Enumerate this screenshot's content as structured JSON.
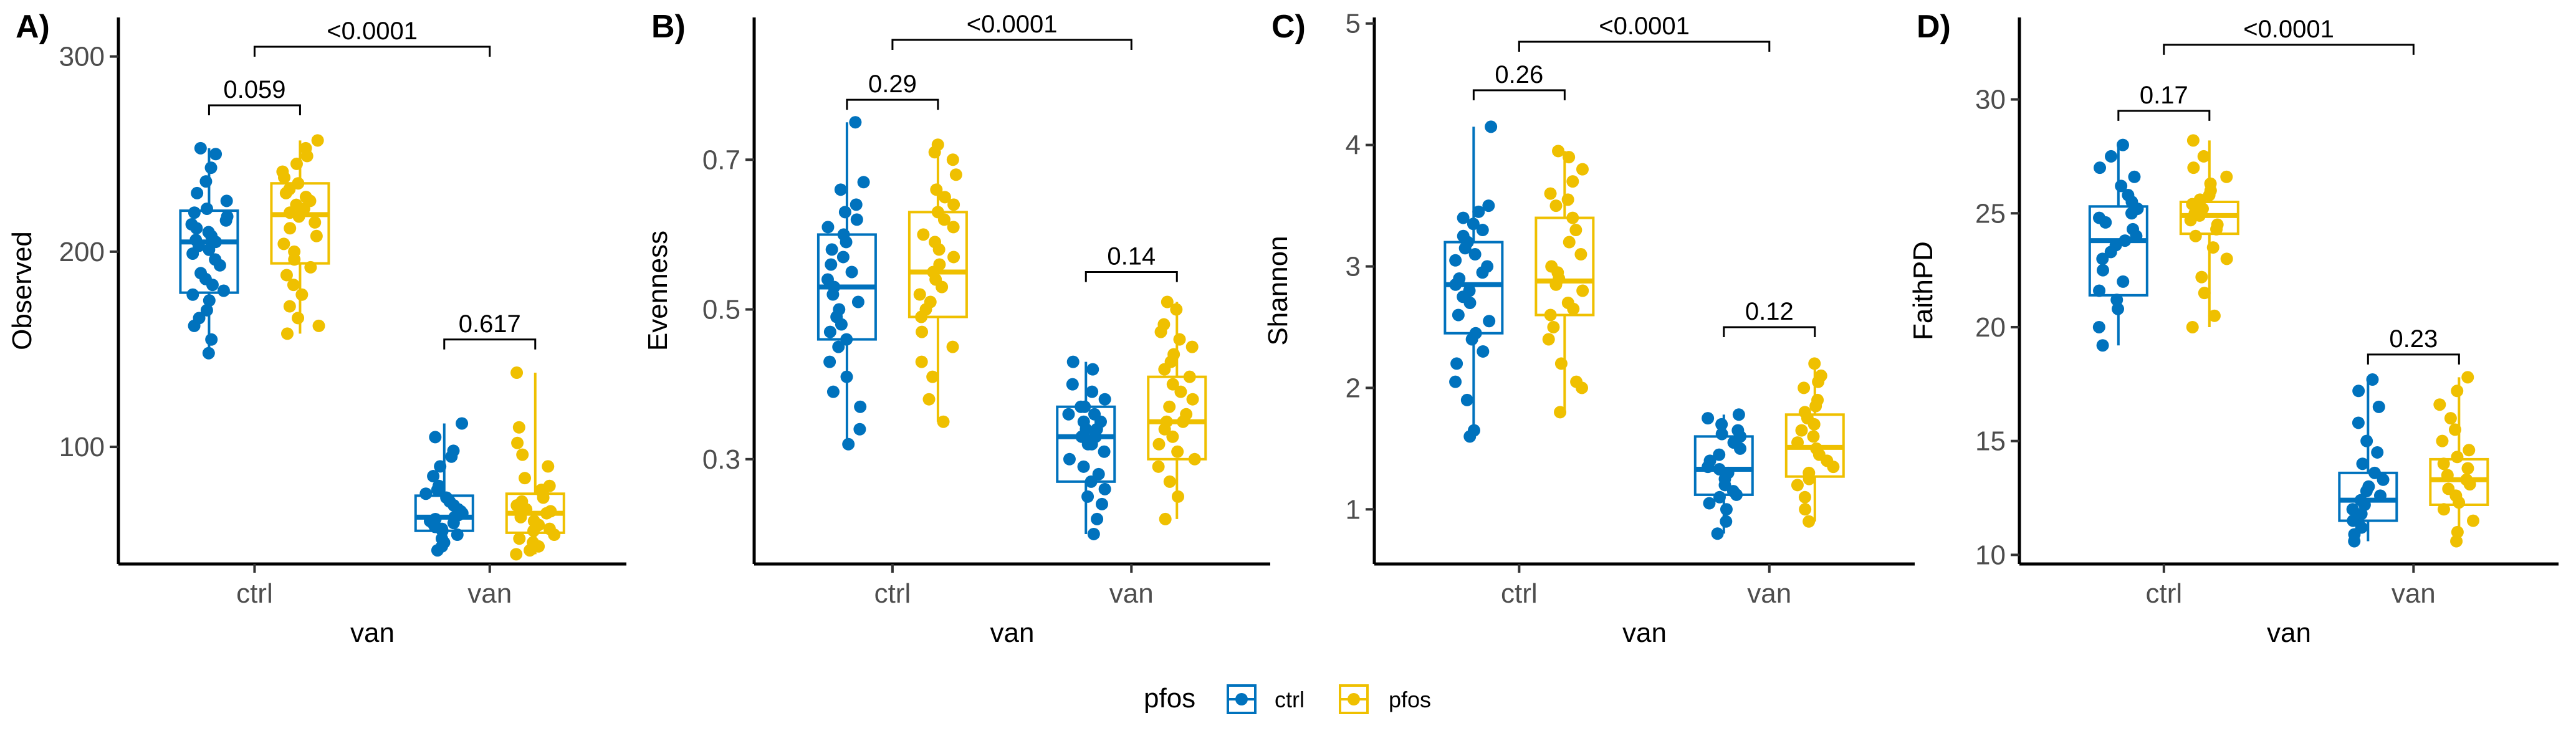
{
  "colors": {
    "ctrl": "#0072BD",
    "pfos": "#EFC000"
  },
  "legend": {
    "title": "pfos",
    "items": [
      {
        "key": "ctrl",
        "label": "ctrl"
      },
      {
        "key": "pfos",
        "label": "pfos"
      }
    ]
  },
  "chart_data": [
    {
      "type": "boxplot",
      "panel_label": "A)",
      "ylabel": "Observed",
      "xlabel": "van",
      "categories": [
        "ctrl",
        "van"
      ],
      "ylim": [
        40,
        320
      ],
      "yticks": [
        100,
        200,
        300
      ],
      "groups": {
        "ctrl": {
          "ctrl": {
            "min": 148,
            "q1": 179,
            "median": 205,
            "q3": 221,
            "max": 253,
            "points": [
              148,
              155,
              162,
              166,
              170,
              175,
              178,
              180,
              183,
              186,
              189,
              193,
              196,
              199,
              201,
              203,
              205,
              206,
              208,
              210,
              212,
              214,
              216,
              218,
              220,
              222,
              226,
              230,
              236,
              243,
              250,
              253
            ]
          },
          "pfos": {
            "min": 158,
            "q1": 194,
            "median": 219,
            "q3": 235,
            "max": 257,
            "points": [
              158,
              162,
              166,
              172,
              178,
              183,
              188,
              192,
              196,
              200,
              204,
              208,
              212,
              215,
              218,
              220,
              222,
              224,
              226,
              228,
              230,
              232,
              235,
              238,
              241,
              245,
              249,
              253,
              257
            ]
          }
        },
        "van": {
          "ctrl": {
            "min": 47,
            "q1": 57,
            "median": 64,
            "q3": 75,
            "max": 112,
            "points": [
              47,
              49,
              51,
              53,
              55,
              57,
              58,
              59,
              60,
              61,
              62,
              63,
              64,
              65,
              66,
              67,
              68,
              70,
              72,
              74,
              76,
              78,
              80,
              85,
              90,
              95,
              98,
              105,
              112
            ]
          },
          "pfos": {
            "min": 45,
            "q1": 56,
            "median": 66,
            "q3": 76,
            "max": 138,
            "points": [
              45,
              47,
              49,
              51,
              53,
              55,
              57,
              58,
              60,
              62,
              64,
              66,
              67,
              68,
              70,
              72,
              74,
              76,
              78,
              80,
              84,
              90,
              96,
              102,
              110,
              138
            ]
          }
        }
      },
      "comparisons": [
        {
          "label": "0.059",
          "from": "ctrl:ctrl",
          "to": "ctrl:pfos",
          "y": 275
        },
        {
          "label": "0.617",
          "from": "van:ctrl",
          "to": "van:pfos",
          "y": 155
        },
        {
          "label": "<0.0001",
          "from": "ctrl",
          "to": "van",
          "y": 305
        }
      ]
    },
    {
      "type": "boxplot",
      "panel_label": "B)",
      "ylabel": "Evenness",
      "xlabel": "van",
      "categories": [
        "ctrl",
        "van"
      ],
      "ylim": [
        0.16,
        0.89
      ],
      "yticks": [
        0.3,
        0.5,
        0.7
      ],
      "groups": {
        "ctrl": {
          "ctrl": {
            "min": 0.32,
            "q1": 0.46,
            "median": 0.53,
            "q3": 0.6,
            "max": 0.75,
            "points": [
              0.32,
              0.34,
              0.37,
              0.39,
              0.41,
              0.43,
              0.45,
              0.46,
              0.47,
              0.48,
              0.49,
              0.5,
              0.51,
              0.52,
              0.53,
              0.54,
              0.55,
              0.56,
              0.57,
              0.58,
              0.59,
              0.6,
              0.61,
              0.62,
              0.63,
              0.64,
              0.66,
              0.67,
              0.75
            ]
          },
          "pfos": {
            "min": 0.35,
            "q1": 0.49,
            "median": 0.55,
            "q3": 0.63,
            "max": 0.72,
            "points": [
              0.35,
              0.38,
              0.41,
              0.43,
              0.45,
              0.47,
              0.49,
              0.5,
              0.51,
              0.52,
              0.53,
              0.54,
              0.55,
              0.56,
              0.57,
              0.58,
              0.59,
              0.6,
              0.61,
              0.62,
              0.63,
              0.64,
              0.65,
              0.66,
              0.68,
              0.7,
              0.71,
              0.72
            ]
          }
        },
        "van": {
          "ctrl": {
            "min": 0.2,
            "q1": 0.27,
            "median": 0.33,
            "q3": 0.37,
            "max": 0.43,
            "points": [
              0.2,
              0.22,
              0.24,
              0.25,
              0.26,
              0.27,
              0.28,
              0.29,
              0.3,
              0.31,
              0.32,
              0.32,
              0.33,
              0.33,
              0.34,
              0.34,
              0.35,
              0.35,
              0.36,
              0.36,
              0.37,
              0.37,
              0.38,
              0.39,
              0.4,
              0.42,
              0.43
            ]
          },
          "pfos": {
            "min": 0.22,
            "q1": 0.3,
            "median": 0.35,
            "q3": 0.41,
            "max": 0.51,
            "points": [
              0.22,
              0.25,
              0.27,
              0.29,
              0.3,
              0.31,
              0.32,
              0.33,
              0.34,
              0.35,
              0.35,
              0.36,
              0.37,
              0.38,
              0.39,
              0.4,
              0.41,
              0.42,
              0.43,
              0.44,
              0.45,
              0.46,
              0.47,
              0.48,
              0.5,
              0.51
            ]
          }
        }
      },
      "comparisons": [
        {
          "label": "0.29",
          "from": "ctrl:ctrl",
          "to": "ctrl:pfos",
          "y": 0.78
        },
        {
          "label": "0.14",
          "from": "van:ctrl",
          "to": "van:pfos",
          "y": 0.55
        },
        {
          "label": "<0.0001",
          "from": "ctrl",
          "to": "van",
          "y": 0.86
        }
      ]
    },
    {
      "type": "boxplot",
      "panel_label": "C)",
      "ylabel": "Shannon",
      "xlabel": "van",
      "categories": [
        "ctrl",
        "van"
      ],
      "ylim": [
        0.55,
        5.05
      ],
      "yticks": [
        1,
        2,
        3,
        4,
        5
      ],
      "groups": {
        "ctrl": {
          "ctrl": {
            "min": 1.6,
            "q1": 2.45,
            "median": 2.85,
            "q3": 3.2,
            "max": 4.15,
            "points": [
              1.6,
              1.65,
              1.9,
              2.05,
              2.2,
              2.3,
              2.4,
              2.45,
              2.55,
              2.6,
              2.7,
              2.75,
              2.8,
              2.85,
              2.9,
              2.95,
              3.0,
              3.05,
              3.1,
              3.15,
              3.2,
              3.25,
              3.3,
              3.35,
              3.4,
              3.45,
              3.5,
              4.15
            ]
          },
          "pfos": {
            "min": 1.8,
            "q1": 2.6,
            "median": 2.88,
            "q3": 3.4,
            "max": 3.95,
            "points": [
              1.8,
              2.0,
              2.05,
              2.2,
              2.4,
              2.5,
              2.6,
              2.65,
              2.7,
              2.8,
              2.85,
              2.9,
              2.95,
              3.0,
              3.1,
              3.2,
              3.3,
              3.4,
              3.5,
              3.55,
              3.6,
              3.7,
              3.8,
              3.9,
              3.95
            ]
          }
        },
        "van": {
          "ctrl": {
            "min": 0.8,
            "q1": 1.12,
            "median": 1.33,
            "q3": 1.6,
            "max": 1.78,
            "points": [
              0.8,
              0.9,
              1.0,
              1.05,
              1.1,
              1.12,
              1.15,
              1.2,
              1.25,
              1.3,
              1.33,
              1.35,
              1.4,
              1.45,
              1.5,
              1.55,
              1.6,
              1.62,
              1.65,
              1.7,
              1.75,
              1.78
            ]
          },
          "pfos": {
            "min": 0.9,
            "q1": 1.27,
            "median": 1.51,
            "q3": 1.78,
            "max": 2.2,
            "points": [
              0.9,
              1.0,
              1.1,
              1.2,
              1.25,
              1.3,
              1.35,
              1.4,
              1.45,
              1.5,
              1.55,
              1.6,
              1.65,
              1.7,
              1.75,
              1.8,
              1.85,
              1.9,
              2.0,
              2.05,
              2.1,
              2.2
            ]
          }
        }
      },
      "comparisons": [
        {
          "label": "0.26",
          "from": "ctrl:ctrl",
          "to": "ctrl:pfos",
          "y": 4.45
        },
        {
          "label": "0.12",
          "from": "van:ctrl",
          "to": "van:pfos",
          "y": 2.5
        },
        {
          "label": "<0.0001",
          "from": "ctrl",
          "to": "van",
          "y": 4.85
        }
      ]
    },
    {
      "type": "boxplot",
      "panel_label": "D)",
      "ylabel": "FaithPD",
      "xlabel": "van",
      "categories": [
        "ctrl",
        "van"
      ],
      "ylim": [
        9.6,
        33.6
      ],
      "yticks": [
        10,
        15,
        20,
        25,
        30
      ],
      "groups": {
        "ctrl": {
          "ctrl": {
            "min": 19.2,
            "q1": 21.4,
            "median": 23.8,
            "q3": 25.3,
            "max": 28.0,
            "points": [
              19.2,
              20.0,
              20.8,
              21.2,
              21.6,
              22.0,
              22.5,
              23.0,
              23.3,
              23.6,
              23.8,
              24.0,
              24.3,
              24.6,
              24.8,
              25.0,
              25.2,
              25.5,
              25.8,
              26.2,
              26.6,
              27.0,
              27.5,
              28.0
            ]
          },
          "pfos": {
            "min": 20.0,
            "q1": 24.1,
            "median": 24.9,
            "q3": 25.5,
            "max": 28.2,
            "points": [
              20.0,
              20.5,
              21.5,
              22.2,
              23.0,
              23.5,
              24.0,
              24.3,
              24.5,
              24.7,
              24.9,
              25.0,
              25.2,
              25.4,
              25.6,
              25.8,
              26.0,
              26.3,
              26.6,
              27.0,
              27.5,
              28.2
            ]
          }
        },
        "van": {
          "ctrl": {
            "min": 10.6,
            "q1": 11.5,
            "median": 12.4,
            "q3": 13.6,
            "max": 17.7,
            "points": [
              10.6,
              10.9,
              11.2,
              11.5,
              11.8,
              12.0,
              12.2,
              12.4,
              12.6,
              12.8,
              13.0,
              13.3,
              13.6,
              14.0,
              14.5,
              15.0,
              15.8,
              16.5,
              17.2,
              17.7
            ]
          },
          "pfos": {
            "min": 10.6,
            "q1": 12.2,
            "median": 13.3,
            "q3": 14.2,
            "max": 17.8,
            "points": [
              10.6,
              11.0,
              11.5,
              12.0,
              12.3,
              12.6,
              12.9,
              13.1,
              13.3,
              13.5,
              13.8,
              14.0,
              14.3,
              14.6,
              15.0,
              15.5,
              16.0,
              16.6,
              17.2,
              17.8
            ]
          }
        }
      },
      "comparisons": [
        {
          "label": "0.17",
          "from": "ctrl:ctrl",
          "to": "ctrl:pfos",
          "y": 29.5
        },
        {
          "label": "0.23",
          "from": "van:ctrl",
          "to": "van:pfos",
          "y": 18.8
        },
        {
          "label": "<0.0001",
          "from": "ctrl",
          "to": "van",
          "y": 32.4
        }
      ]
    }
  ]
}
